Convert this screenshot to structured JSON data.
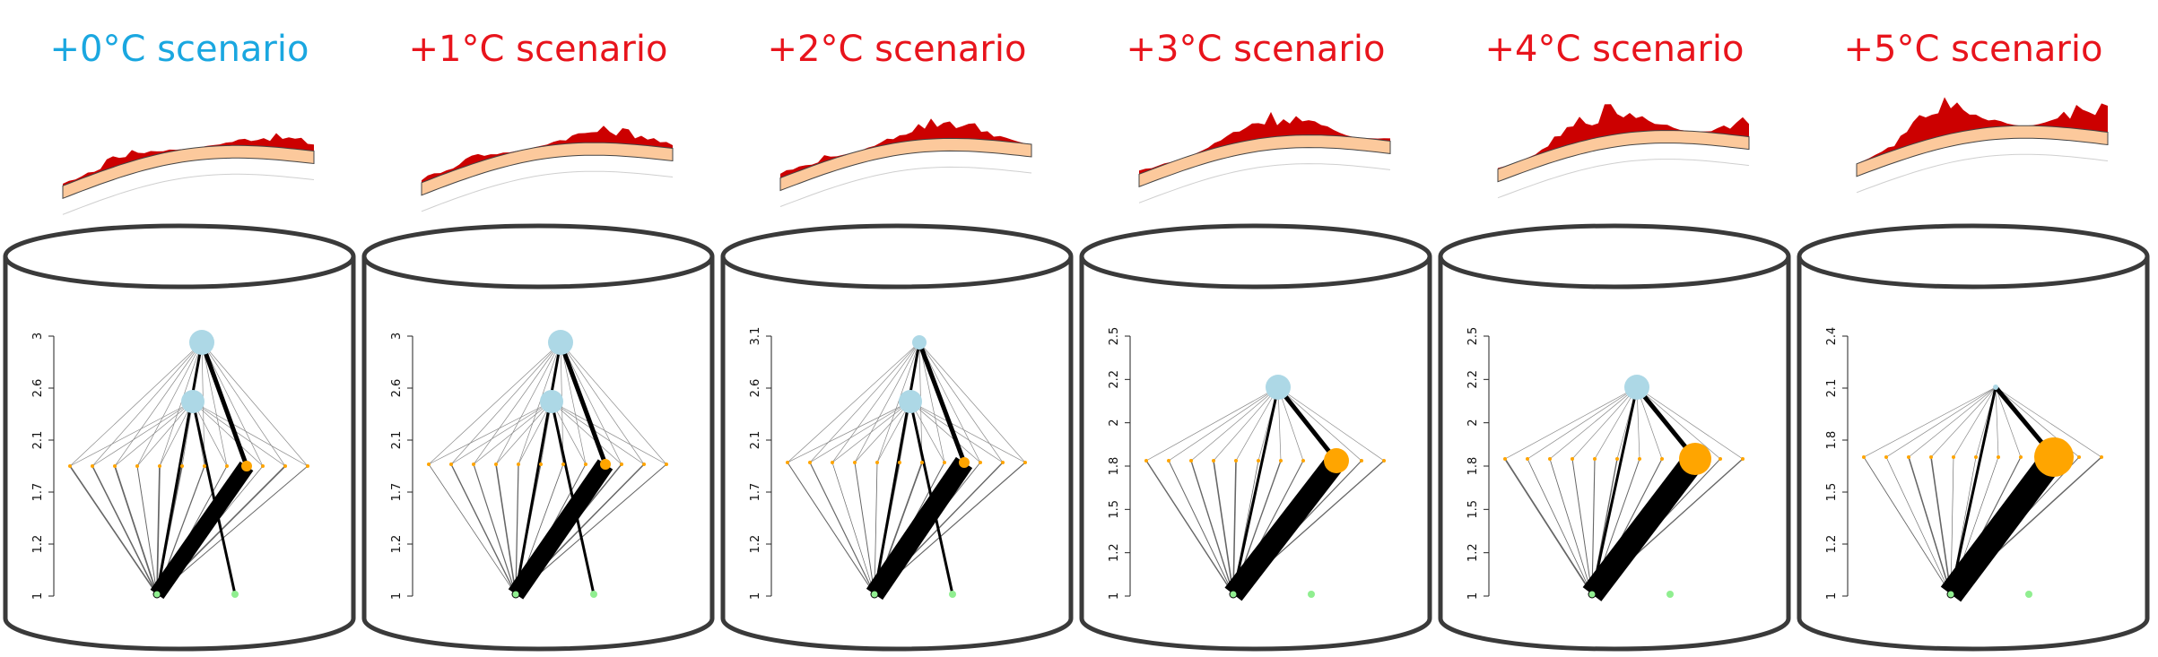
{
  "colors": {
    "baseline_title": "#1aa7e0",
    "warm_title": "#e8141c",
    "foodweb_node_top": "#add8e6",
    "foodweb_node_mid": "#ffa500",
    "foodweb_node_basal": "#90ee90",
    "landscape_dark": "#cc0000",
    "landscape_light": "#fcc99c",
    "cylinder_stroke": "#3a3a3a"
  },
  "panels": [
    {
      "title": "+0°C scenario",
      "y_ticks": [
        "1",
        "1.2",
        "1.7",
        "2.1",
        "2.6",
        "3"
      ],
      "red_level": 0.25
    },
    {
      "title": "+1°C scenario",
      "y_ticks": [
        "1",
        "1.2",
        "1.7",
        "2.1",
        "2.6",
        "3"
      ],
      "red_level": 0.35
    },
    {
      "title": "+2°C scenario",
      "y_ticks": [
        "1",
        "1.2",
        "1.7",
        "2.1",
        "2.6",
        "3.1"
      ],
      "red_level": 0.5
    },
    {
      "title": "+3°C scenario",
      "y_ticks": [
        "1",
        "1.2",
        "1.5",
        "1.8",
        "2",
        "2.2",
        "2.5"
      ],
      "red_level": 0.62
    },
    {
      "title": "+4°C scenario",
      "y_ticks": [
        "1",
        "1.2",
        "1.5",
        "1.8",
        "2",
        "2.2",
        "2.5"
      ],
      "red_level": 0.78
    },
    {
      "title": "+5°C scenario",
      "y_ticks": [
        "1",
        "1.2",
        "1.5",
        "1.8",
        "2.1",
        "2.4"
      ],
      "red_level": 0.95
    }
  ]
}
